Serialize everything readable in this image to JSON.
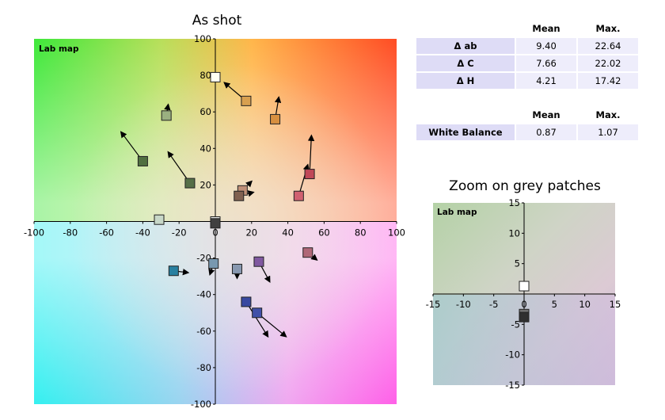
{
  "main_title": "As shot",
  "zoom_title": "Zoom on grey patches",
  "stats_table": {
    "headers": [
      "Mean",
      "Max."
    ],
    "rows": [
      {
        "label": "Δ ab",
        "mean": "9.40",
        "max": "22.64"
      },
      {
        "label": "Δ C",
        "mean": "7.66",
        "max": "22.02"
      },
      {
        "label": "Δ H",
        "mean": "4.21",
        "max": "17.42"
      }
    ]
  },
  "wb_table": {
    "headers": [
      "Mean",
      "Max."
    ],
    "rows": [
      {
        "label": "White Balance",
        "mean": "0.87",
        "max": "1.07"
      }
    ]
  },
  "chart_data": [
    {
      "type": "scatter",
      "title": "As shot",
      "panel_label": "Lab map",
      "xlim": [
        -100,
        100
      ],
      "ylim": [
        -100,
        100
      ],
      "x_ticks": [
        -100,
        -80,
        -60,
        -40,
        -20,
        0,
        20,
        40,
        60,
        80,
        100
      ],
      "y_ticks": [
        -100,
        -80,
        -60,
        -40,
        -20,
        0,
        20,
        40,
        60,
        80,
        100
      ],
      "patches": [
        {
          "a": 0,
          "b": 79,
          "ta": 0,
          "tb": 79,
          "color": "#fffff2"
        },
        {
          "a": 17,
          "b": 66,
          "ta": 5,
          "tb": 76,
          "color": "#d8a050"
        },
        {
          "a": 33,
          "b": 56,
          "ta": 35,
          "tb": 68,
          "color": "#d89040"
        },
        {
          "a": -27,
          "b": 58,
          "ta": -26,
          "tb": 64,
          "color": "#9ab080"
        },
        {
          "a": -40,
          "b": 33,
          "ta": -52,
          "tb": 49,
          "color": "#507040"
        },
        {
          "a": -14,
          "b": 21,
          "ta": -26,
          "tb": 38,
          "color": "#567048"
        },
        {
          "a": 52,
          "b": 26,
          "ta": 53,
          "tb": 47,
          "color": "#c04858"
        },
        {
          "a": 46,
          "b": 14,
          "ta": 51,
          "tb": 31,
          "color": "#d06070"
        },
        {
          "a": 15,
          "b": 17,
          "ta": 20,
          "tb": 22,
          "color": "#c09078"
        },
        {
          "a": 13,
          "b": 14,
          "ta": 21,
          "tb": 16,
          "color": "#806050"
        },
        {
          "a": -31,
          "b": 1,
          "ta": -31,
          "tb": 1,
          "color": "#c8d8c8"
        },
        {
          "a": 0,
          "b": 0,
          "ta": 0,
          "tb": 0,
          "color": "#e8e8e8"
        },
        {
          "a": 0,
          "b": -1,
          "ta": 0,
          "tb": -1,
          "color": "#404040"
        },
        {
          "a": 51,
          "b": -17,
          "ta": 56,
          "tb": -21,
          "color": "#b06878"
        },
        {
          "a": 24,
          "b": -22,
          "ta": 30,
          "tb": -33,
          "color": "#8058a0"
        },
        {
          "a": 12,
          "b": -26,
          "ta": 12,
          "tb": -31,
          "color": "#8898b0"
        },
        {
          "a": -1,
          "b": -23,
          "ta": -3,
          "tb": -29,
          "color": "#7898b0"
        },
        {
          "a": -23,
          "b": -27,
          "ta": -15,
          "tb": -28,
          "color": "#2880a0"
        },
        {
          "a": 17,
          "b": -44,
          "ta": 29,
          "tb": -63,
          "color": "#3848a0"
        },
        {
          "a": 23,
          "b": -50,
          "ta": 39,
          "tb": -63,
          "color": "#4050a8"
        }
      ]
    },
    {
      "type": "scatter",
      "title": "Zoom on grey patches",
      "panel_label": "Lab map",
      "xlim": [
        -15,
        15
      ],
      "ylim": [
        -15,
        15
      ],
      "x_ticks": [
        -15,
        -10,
        -5,
        0,
        5,
        10,
        15
      ],
      "y_ticks": [
        -15,
        -10,
        -5,
        0,
        5,
        10,
        15
      ],
      "patches": [
        {
          "a": 0,
          "b": 1.3,
          "color": "#ffffff"
        },
        {
          "a": 0,
          "b": -3.3,
          "color": "#707070"
        },
        {
          "a": 0,
          "b": -3.8,
          "color": "#303030"
        }
      ]
    }
  ]
}
